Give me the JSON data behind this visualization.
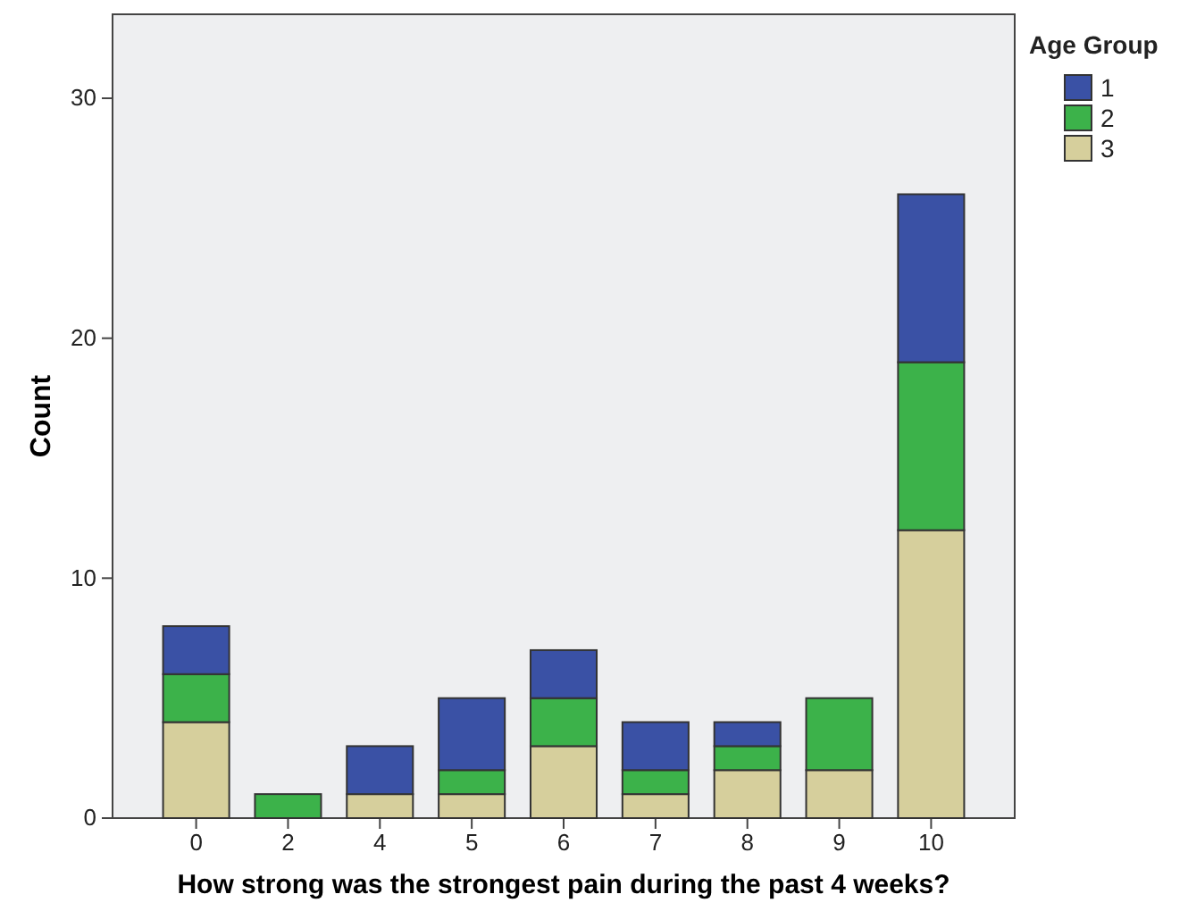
{
  "chart_data": {
    "type": "bar",
    "stacked": true,
    "xlabel": "How strong was the strongest pain during the past 4 weeks?",
    "ylabel": "Count",
    "legend_title": "Age Group",
    "legend": "right",
    "categories": [
      "0",
      "2",
      "4",
      "5",
      "6",
      "7",
      "8",
      "9",
      "10"
    ],
    "ylim": [
      0,
      33.5
    ],
    "yticks": [
      0,
      10,
      20,
      30
    ],
    "series": [
      {
        "name": "3",
        "color": "#d6cf9c",
        "values": [
          4,
          0,
          1,
          1,
          3,
          1,
          2,
          2,
          12
        ]
      },
      {
        "name": "2",
        "color": "#3cb24a",
        "values": [
          2,
          1,
          0,
          1,
          2,
          1,
          1,
          3,
          7
        ]
      },
      {
        "name": "1",
        "color": "#3a51a5",
        "values": [
          2,
          0,
          2,
          3,
          2,
          2,
          1,
          0,
          7
        ]
      }
    ]
  }
}
